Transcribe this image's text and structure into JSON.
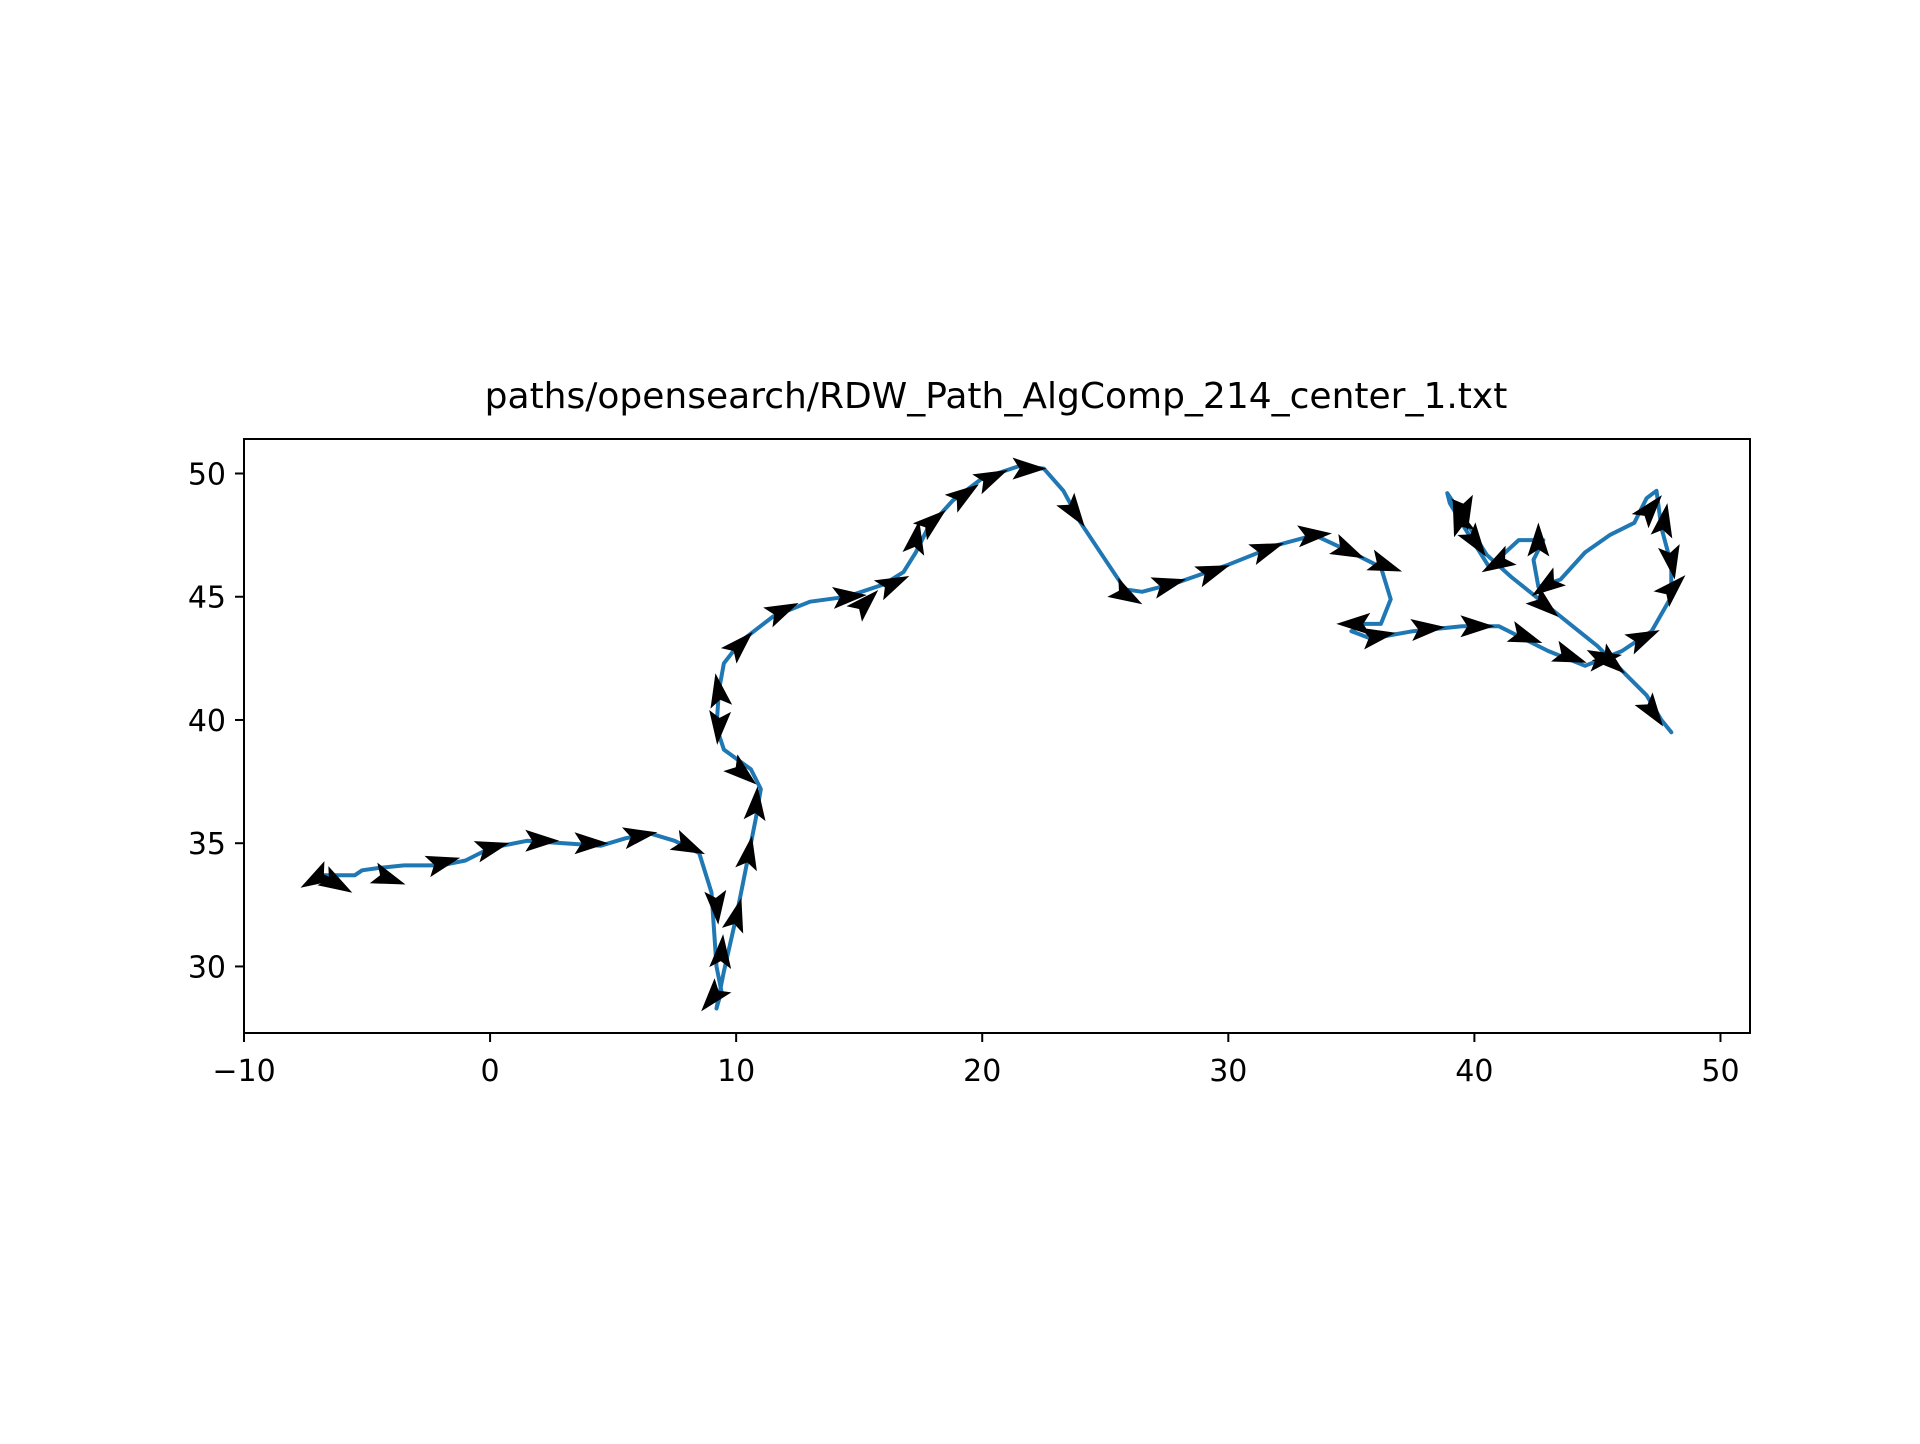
{
  "chart_data": {
    "type": "line",
    "title": "paths/opensearch/RDW_Path_AlgComp_214_center_1.txt",
    "xlabel": "",
    "ylabel": "",
    "xlim": [
      -10,
      51.2
    ],
    "ylim": [
      27.3,
      51.4
    ],
    "x_ticks": [
      -10,
      0,
      10,
      20,
      30,
      40,
      50
    ],
    "x_tick_labels": [
      "−10",
      "0",
      "10",
      "20",
      "30",
      "40",
      "50"
    ],
    "y_ticks": [
      30,
      35,
      40,
      45,
      50
    ],
    "y_tick_labels": [
      "30",
      "35",
      "40",
      "45",
      "50"
    ],
    "grid": false,
    "legend": "none",
    "colors": {
      "path": "#1f77b4",
      "arrows": "#000000",
      "axes": "#000000"
    },
    "series": [
      {
        "points": [
          [
            -7.0,
            33.7
          ],
          [
            -5.5,
            33.7
          ],
          [
            -5.2,
            33.9
          ],
          [
            -4.5,
            34.0
          ],
          [
            -3.5,
            34.1
          ],
          [
            -2.0,
            34.1
          ],
          [
            -1.0,
            34.3
          ],
          [
            0.0,
            34.8
          ],
          [
            1.5,
            35.1
          ],
          [
            3.0,
            35.0
          ],
          [
            4.5,
            34.9
          ],
          [
            5.5,
            35.2
          ],
          [
            6.5,
            35.4
          ],
          [
            7.5,
            35.1
          ],
          [
            8.5,
            34.6
          ],
          [
            9.0,
            33.0
          ],
          [
            9.1,
            31.5
          ],
          [
            9.2,
            30.0
          ],
          [
            9.4,
            29.0
          ],
          [
            9.2,
            28.3
          ],
          [
            9.5,
            29.8
          ],
          [
            10.0,
            32.0
          ],
          [
            10.4,
            34.0
          ],
          [
            10.8,
            36.0
          ],
          [
            11.0,
            37.2
          ],
          [
            10.6,
            38.0
          ],
          [
            9.5,
            38.8
          ],
          [
            9.2,
            39.7
          ],
          [
            9.3,
            41.2
          ],
          [
            9.5,
            42.3
          ],
          [
            10.2,
            43.2
          ],
          [
            11.5,
            44.2
          ],
          [
            13.0,
            44.8
          ],
          [
            14.5,
            45.0
          ],
          [
            16.0,
            45.5
          ],
          [
            16.8,
            46.0
          ],
          [
            17.3,
            46.8
          ],
          [
            17.8,
            47.8
          ],
          [
            18.8,
            48.9
          ],
          [
            20.0,
            49.8
          ],
          [
            21.5,
            50.3
          ],
          [
            22.5,
            50.2
          ],
          [
            23.3,
            49.3
          ],
          [
            24.0,
            48.0
          ],
          [
            25.0,
            46.5
          ],
          [
            25.8,
            45.3
          ],
          [
            26.5,
            45.2
          ],
          [
            28.0,
            45.6
          ],
          [
            30.0,
            46.3
          ],
          [
            32.0,
            47.1
          ],
          [
            33.5,
            47.5
          ],
          [
            35.0,
            46.8
          ],
          [
            36.2,
            46.2
          ],
          [
            36.6,
            44.9
          ],
          [
            36.2,
            43.9
          ],
          [
            35.5,
            43.9
          ],
          [
            35.0,
            43.6
          ],
          [
            35.8,
            43.3
          ],
          [
            37.5,
            43.6
          ],
          [
            39.5,
            43.8
          ],
          [
            41.0,
            43.8
          ],
          [
            43.0,
            42.8
          ],
          [
            44.5,
            42.2
          ],
          [
            46.0,
            42.8
          ],
          [
            47.2,
            43.6
          ],
          [
            48.0,
            45.0
          ],
          [
            48.0,
            46.3
          ],
          [
            47.6,
            47.8
          ],
          [
            47.4,
            49.3
          ],
          [
            47.0,
            49.0
          ],
          [
            46.5,
            48.0
          ],
          [
            45.5,
            47.5
          ],
          [
            44.5,
            46.8
          ],
          [
            43.5,
            45.7
          ],
          [
            42.6,
            45.4
          ],
          [
            42.4,
            46.5
          ],
          [
            42.8,
            47.3
          ],
          [
            41.8,
            47.3
          ],
          [
            40.6,
            46.2
          ],
          [
            39.6,
            47.8
          ],
          [
            39.0,
            48.8
          ],
          [
            38.9,
            49.2
          ],
          [
            39.5,
            48.3
          ],
          [
            40.5,
            46.7
          ],
          [
            41.5,
            45.8
          ],
          [
            42.5,
            45.0
          ],
          [
            44.0,
            43.8
          ],
          [
            45.0,
            43.0
          ],
          [
            46.0,
            42.0
          ],
          [
            47.0,
            41.0
          ],
          [
            47.6,
            40.0
          ],
          [
            48.0,
            39.5
          ]
        ]
      }
    ],
    "arrows": [
      [
        -7.0,
        33.6,
        210
      ],
      [
        -6.3,
        33.4,
        -30
      ],
      [
        -4.2,
        33.6,
        -20
      ],
      [
        -2.0,
        34.2,
        15
      ],
      [
        0.0,
        34.8,
        15
      ],
      [
        2.0,
        35.1,
        0
      ],
      [
        4.0,
        35.0,
        0
      ],
      [
        6.0,
        35.3,
        10
      ],
      [
        8.0,
        34.9,
        -25
      ],
      [
        9.2,
        32.5,
        -85
      ],
      [
        9.4,
        30.5,
        85
      ],
      [
        9.1,
        28.8,
        -130
      ],
      [
        10.0,
        32.0,
        75
      ],
      [
        10.5,
        34.5,
        80
      ],
      [
        10.8,
        36.5,
        85
      ],
      [
        10.2,
        37.9,
        -40
      ],
      [
        9.3,
        39.8,
        -95
      ],
      [
        9.3,
        41.1,
        100
      ],
      [
        10.1,
        43.0,
        45
      ],
      [
        11.8,
        44.4,
        25
      ],
      [
        14.5,
        45.0,
        5
      ],
      [
        15.2,
        44.7,
        45
      ],
      [
        16.3,
        45.5,
        25
      ],
      [
        17.3,
        47.3,
        80
      ],
      [
        17.9,
        48.0,
        40
      ],
      [
        19.2,
        49.1,
        35
      ],
      [
        20.3,
        49.8,
        25
      ],
      [
        21.8,
        50.2,
        0
      ],
      [
        23.7,
        48.5,
        -55
      ],
      [
        25.8,
        45.1,
        -30
      ],
      [
        27.5,
        45.5,
        15
      ],
      [
        29.3,
        46.0,
        20
      ],
      [
        31.5,
        46.9,
        20
      ],
      [
        33.4,
        47.5,
        5
      ],
      [
        34.8,
        46.9,
        -25
      ],
      [
        36.3,
        46.3,
        -20
      ],
      [
        35.2,
        43.9,
        180
      ],
      [
        36.0,
        43.4,
        10
      ],
      [
        38.0,
        43.7,
        5
      ],
      [
        40.0,
        43.8,
        0
      ],
      [
        42.0,
        43.4,
        -20
      ],
      [
        43.8,
        42.6,
        -20
      ],
      [
        45.2,
        42.5,
        10
      ],
      [
        46.8,
        43.3,
        25
      ],
      [
        48.0,
        45.3,
        45
      ],
      [
        48.0,
        46.5,
        -80
      ],
      [
        47.7,
        48.0,
        80
      ],
      [
        47.1,
        48.5,
        50
      ],
      [
        43.0,
        45.5,
        215
      ],
      [
        42.6,
        47.2,
        90
      ],
      [
        41.0,
        46.4,
        210
      ],
      [
        39.4,
        48.1,
        110
      ],
      [
        39.6,
        48.5,
        -80
      ],
      [
        40.0,
        47.3,
        -55
      ],
      [
        42.8,
        44.7,
        -40
      ],
      [
        45.5,
        42.4,
        -40
      ],
      [
        47.2,
        40.4,
        -55
      ]
    ]
  }
}
